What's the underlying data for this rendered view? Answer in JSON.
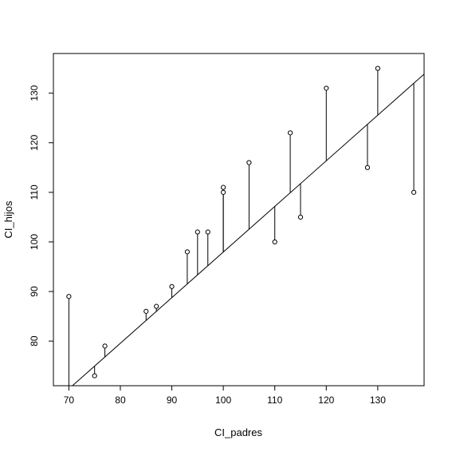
{
  "chart_data": {
    "type": "scatter",
    "xlabel": "CI_padres",
    "ylabel": "CI_hijos",
    "xlim": [
      67,
      139
    ],
    "ylim": [
      71,
      138
    ],
    "x_ticks": [
      70,
      80,
      90,
      100,
      110,
      120,
      130
    ],
    "y_ticks": [
      80,
      90,
      100,
      110,
      120,
      130
    ],
    "grid": false,
    "legend": "none",
    "marker": "open-circle",
    "points": [
      {
        "x": 70,
        "y": 89
      },
      {
        "x": 75,
        "y": 73
      },
      {
        "x": 77,
        "y": 79
      },
      {
        "x": 85,
        "y": 86
      },
      {
        "x": 87,
        "y": 87
      },
      {
        "x": 90,
        "y": 91
      },
      {
        "x": 93,
        "y": 98
      },
      {
        "x": 95,
        "y": 102
      },
      {
        "x": 97,
        "y": 102
      },
      {
        "x": 100,
        "y": 111
      },
      {
        "x": 100,
        "y": 110
      },
      {
        "x": 105,
        "y": 116
      },
      {
        "x": 110,
        "y": 100
      },
      {
        "x": 113,
        "y": 122
      },
      {
        "x": 115,
        "y": 105
      },
      {
        "x": 120,
        "y": 131
      },
      {
        "x": 128,
        "y": 115
      },
      {
        "x": 130,
        "y": 135
      },
      {
        "x": 137,
        "y": 110
      }
    ],
    "regression_line": {
      "intercept": 5.96,
      "slope": 0.92
    },
    "residual_segments": true,
    "colors": {
      "ink": "#000000",
      "background": "#ffffff"
    }
  }
}
